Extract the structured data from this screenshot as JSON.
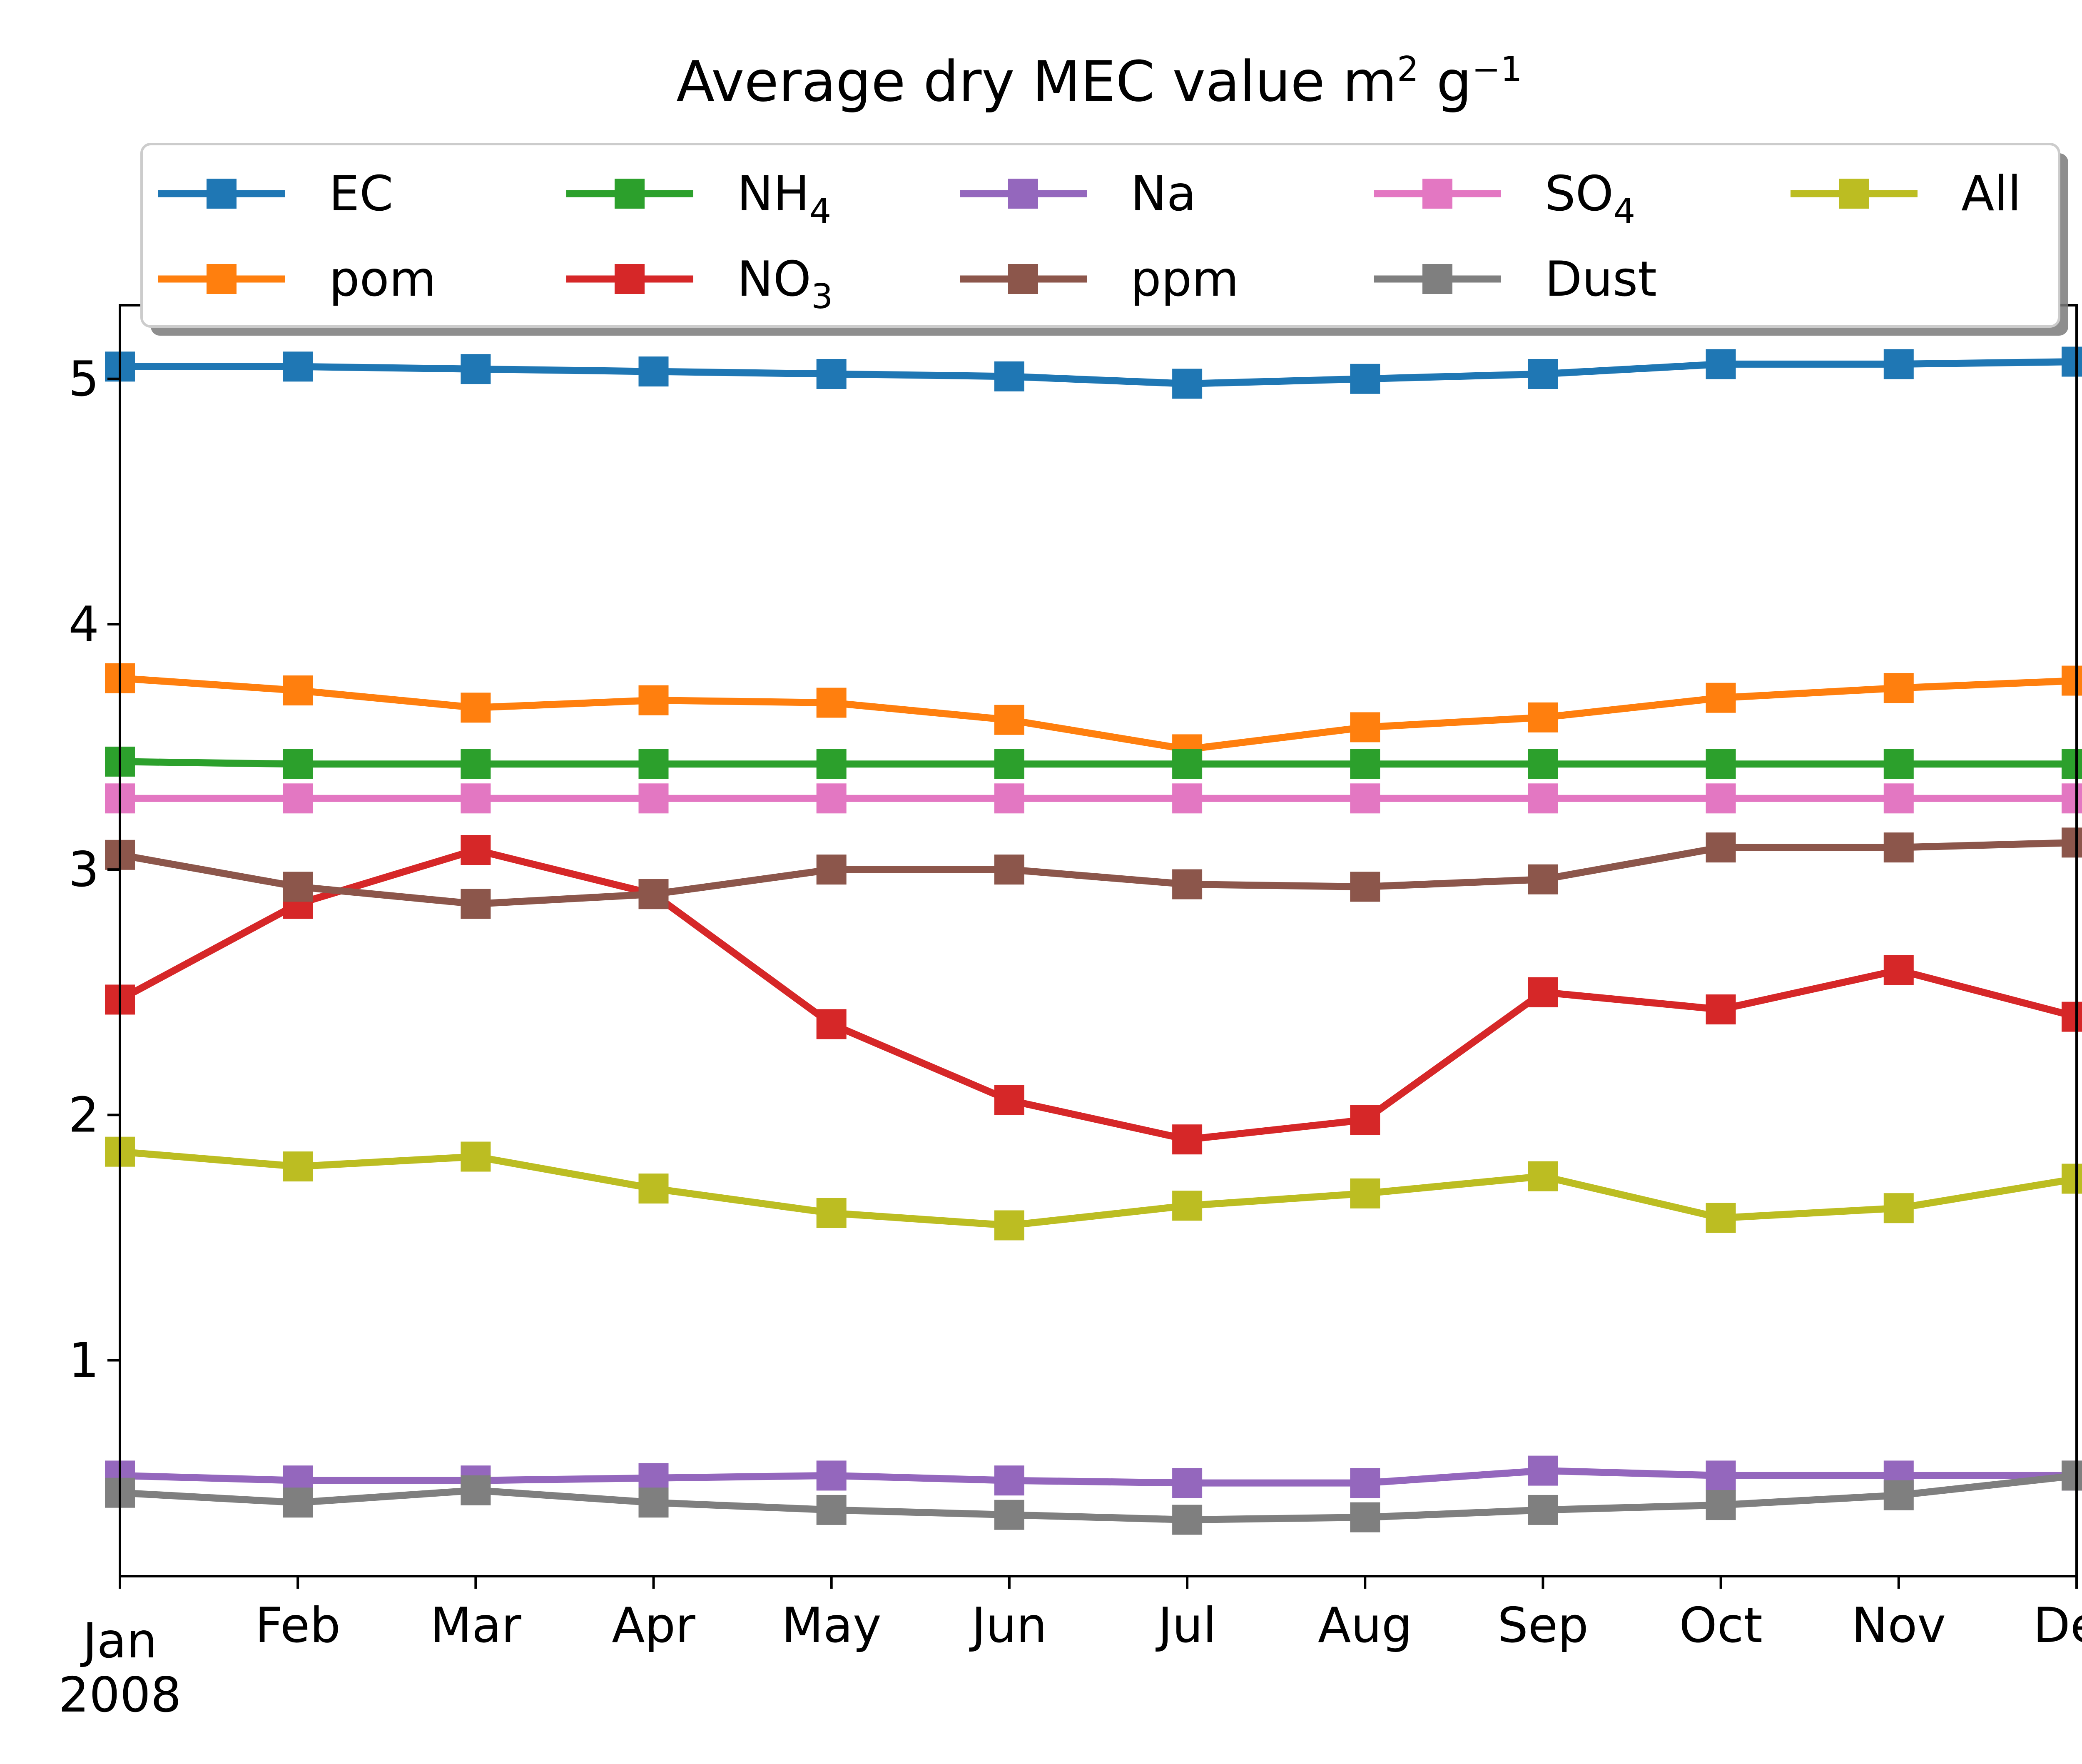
{
  "chart_data": {
    "type": "line",
    "title": "Average dry MEC value",
    "title_unit": {
      "base1": "m",
      "exp1": "2",
      "base2": "g",
      "exp2": "−1"
    },
    "xlabel": "",
    "ylabel": "",
    "categories": [
      "Jan",
      "Feb",
      "Mar",
      "Apr",
      "May",
      "Jun",
      "Jul",
      "Aug",
      "Sep",
      "Oct",
      "Nov",
      "Dec"
    ],
    "x_year_label": "2008",
    "ylim": [
      0.12,
      5.3
    ],
    "yticks": [
      1,
      2,
      3,
      4,
      5
    ],
    "grid": false,
    "legend": {
      "placement": "top",
      "columns": 5
    },
    "series": [
      {
        "name": "EC",
        "name_base": "EC",
        "name_sub": "",
        "color": "#1f77b4",
        "values": [
          5.05,
          5.05,
          5.04,
          5.03,
          5.02,
          5.01,
          4.98,
          5.0,
          5.02,
          5.06,
          5.06,
          5.07
        ]
      },
      {
        "name": "pom",
        "name_base": "pom",
        "name_sub": "",
        "color": "#ff7f0e",
        "values": [
          3.78,
          3.73,
          3.66,
          3.69,
          3.68,
          3.61,
          3.49,
          3.58,
          3.62,
          3.7,
          3.74,
          3.77
        ]
      },
      {
        "name": "NH4",
        "name_base": "NH",
        "name_sub": "4",
        "color": "#2ca02c",
        "values": [
          3.44,
          3.43,
          3.43,
          3.43,
          3.43,
          3.43,
          3.43,
          3.43,
          3.43,
          3.43,
          3.43,
          3.43
        ]
      },
      {
        "name": "NO3",
        "name_base": "NO",
        "name_sub": "3",
        "color": "#d62728",
        "values": [
          2.47,
          2.86,
          3.08,
          2.9,
          2.37,
          2.06,
          1.9,
          1.98,
          2.5,
          2.43,
          2.59,
          2.4
        ]
      },
      {
        "name": "Na",
        "name_base": "Na",
        "name_sub": "",
        "color": "#9467bd",
        "values": [
          0.53,
          0.51,
          0.51,
          0.52,
          0.53,
          0.51,
          0.5,
          0.5,
          0.55,
          0.53,
          0.53,
          0.53
        ]
      },
      {
        "name": "ppm",
        "name_base": "ppm",
        "name_sub": "",
        "color": "#8c564b",
        "values": [
          3.06,
          2.93,
          2.86,
          2.9,
          3.0,
          3.0,
          2.94,
          2.93,
          2.96,
          3.09,
          3.09,
          3.11
        ]
      },
      {
        "name": "SO4",
        "name_base": "SO",
        "name_sub": "4",
        "color": "#e377c2",
        "values": [
          3.29,
          3.29,
          3.29,
          3.29,
          3.29,
          3.29,
          3.29,
          3.29,
          3.29,
          3.29,
          3.29,
          3.29
        ]
      },
      {
        "name": "Dust",
        "name_base": "Dust",
        "name_sub": "",
        "color": "#7f7f7f",
        "values": [
          0.46,
          0.42,
          0.47,
          0.42,
          0.39,
          0.37,
          0.35,
          0.36,
          0.39,
          0.41,
          0.45,
          0.53
        ]
      },
      {
        "name": "All",
        "name_base": "All",
        "name_sub": "",
        "color": "#bcbd22",
        "values": [
          1.85,
          1.79,
          1.83,
          1.7,
          1.6,
          1.55,
          1.63,
          1.68,
          1.75,
          1.58,
          1.62,
          1.74
        ]
      }
    ]
  }
}
